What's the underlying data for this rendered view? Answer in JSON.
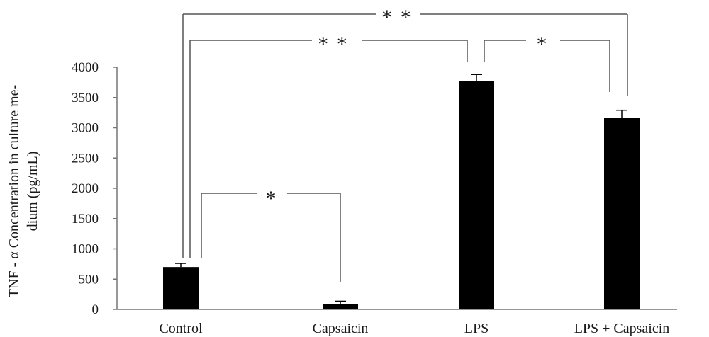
{
  "chart_data": {
    "type": "bar",
    "categories": [
      "Control",
      "Capsaicin",
      "LPS",
      "LPS + Capsaicin"
    ],
    "values": [
      700,
      90,
      3770,
      3160
    ],
    "errors": [
      60,
      45,
      110,
      130
    ],
    "ylabel_lines": [
      "TNF - α Concentration in culture me-",
      "dium (pg/mL)"
    ],
    "ylim": [
      0,
      4000
    ],
    "yticks": [
      "0",
      "500",
      "1000",
      "1500",
      "2000",
      "2500",
      "3000",
      "3500",
      "4000"
    ],
    "bar_color": "#000000",
    "grid": false,
    "significance": [
      {
        "label": "* *",
        "from": "Control",
        "to": "LPS + Capsaicin"
      },
      {
        "label": "* *",
        "from": "Control",
        "to": "LPS"
      },
      {
        "label": "*",
        "from": "LPS",
        "to": "LPS + Capsaicin"
      },
      {
        "label": "*",
        "from": "Control",
        "to": "Capsaicin"
      }
    ]
  }
}
